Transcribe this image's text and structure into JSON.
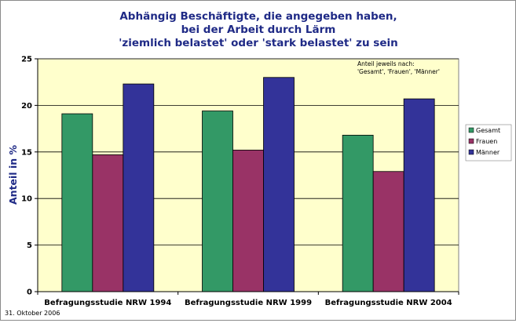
{
  "chart_data": {
    "type": "bar",
    "title": [
      "Abhängig Beschäftigte, die angegeben haben,",
      "bei der Arbeit durch Lärm",
      "'ziemlich belastet' oder 'stark belastet' zu sein"
    ],
    "ylabel": "Anteil in %",
    "xlabel": "",
    "ylim": [
      0,
      25
    ],
    "yticks": [
      0,
      5,
      10,
      15,
      20,
      25
    ],
    "grid": true,
    "categories": [
      "Befragungsstudie NRW 1994",
      "Befragungsstudie NRW 1999",
      "Befragungsstudie NRW 2004"
    ],
    "series": [
      {
        "name": "Gesamt",
        "color": "#339966",
        "values": [
          19.1,
          19.4,
          16.8
        ]
      },
      {
        "name": "Frauen",
        "color": "#993366",
        "values": [
          14.7,
          15.2,
          12.9
        ]
      },
      {
        "name": "Männer",
        "color": "#333399",
        "values": [
          22.3,
          23.0,
          20.7
        ]
      }
    ],
    "legend_placement": "right",
    "annotation": [
      "Anteil jeweils nach:",
      "'Gesamt', 'Frauen', 'Männer'"
    ],
    "plot_background": "#ffffcc"
  },
  "footer": {
    "date": "31. Oktober 2006"
  }
}
